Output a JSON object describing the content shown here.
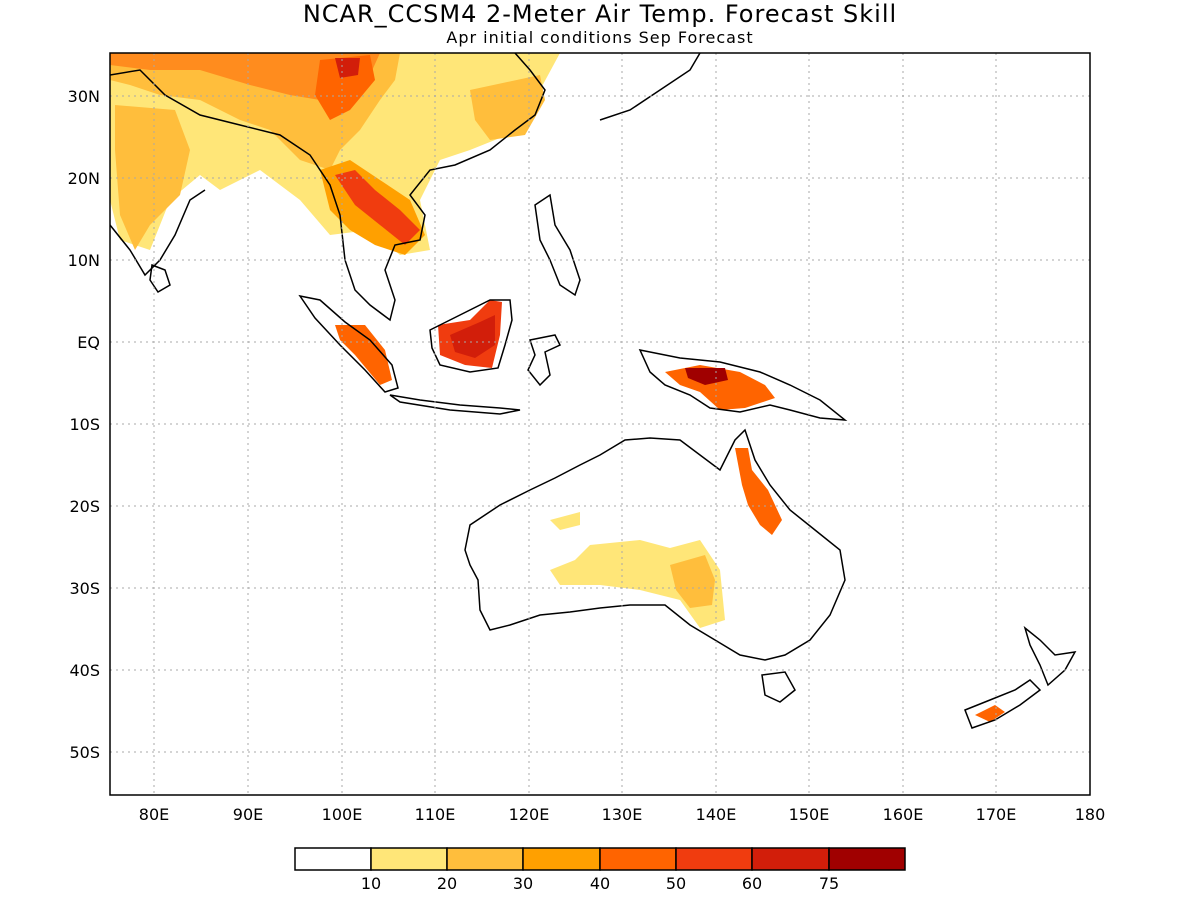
{
  "title": "NCAR_CCSM4 2-Meter Air Temp. Forecast Skill",
  "subtitle": "Apr initial conditions  Sep Forecast",
  "map": {
    "lat_labels": [
      "30N",
      "20N",
      "10N",
      "EQ",
      "10S",
      "20S",
      "30S",
      "40S",
      "50S"
    ],
    "lat_values": [
      30,
      20,
      10,
      0,
      -10,
      -20,
      -30,
      -40,
      -50
    ],
    "lon_labels": [
      "80E",
      "90E",
      "100E",
      "110E",
      "120E",
      "130E",
      "140E",
      "150E",
      "160E",
      "170E",
      "180"
    ],
    "lon_values": [
      80,
      90,
      100,
      110,
      120,
      130,
      140,
      150,
      160,
      170,
      180
    ],
    "lon_range": [
      75,
      180
    ],
    "lat_range": [
      -55,
      35
    ],
    "grid": true
  },
  "colorbar": {
    "labels": [
      "10",
      "20",
      "30",
      "40",
      "50",
      "60",
      "75"
    ],
    "colors": [
      "#ffffff",
      "#ffe678",
      "#ffbe3c",
      "#ffa000",
      "#ff6400",
      "#f03c0f",
      "#d21e0a",
      "#a00000"
    ]
  }
}
